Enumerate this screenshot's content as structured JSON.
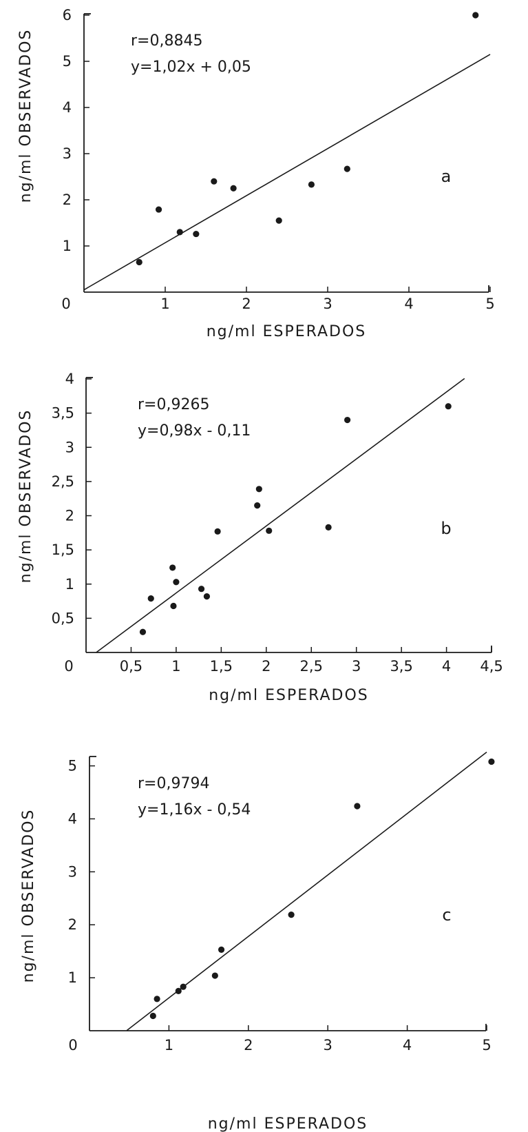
{
  "chart_data": [
    {
      "type": "scatter",
      "panel_label": "a",
      "xlabel": "ng/ml ESPERADOS",
      "ylabel": "ng/ml OBSERVADOS",
      "r_label": "r=0,8845",
      "eq_label": "y=1,02x + 0,05",
      "origin_label": "0",
      "xlim": [
        0,
        5
      ],
      "ylim": [
        0,
        6
      ],
      "xticks": [
        {
          "v": 1,
          "label": "1"
        },
        {
          "v": 2,
          "label": "2"
        },
        {
          "v": 3,
          "label": "3"
        },
        {
          "v": 4,
          "label": "4"
        },
        {
          "v": 5,
          "label": "5"
        }
      ],
      "yticks": [
        {
          "v": 1,
          "label": "1"
        },
        {
          "v": 2,
          "label": "2"
        },
        {
          "v": 3,
          "label": "3"
        },
        {
          "v": 4,
          "label": "4"
        },
        {
          "v": 5,
          "label": "5"
        },
        {
          "v": 6,
          "label": "6"
        }
      ],
      "fit": {
        "slope": 1.02,
        "intercept": 0.05,
        "x0": 0,
        "x1": 5
      },
      "points": [
        {
          "x": 0.68,
          "y": 0.65
        },
        {
          "x": 0.92,
          "y": 1.79
        },
        {
          "x": 1.18,
          "y": 1.3
        },
        {
          "x": 1.38,
          "y": 1.26
        },
        {
          "x": 1.6,
          "y": 2.4
        },
        {
          "x": 1.84,
          "y": 2.25
        },
        {
          "x": 2.4,
          "y": 1.55
        },
        {
          "x": 2.8,
          "y": 2.33
        },
        {
          "x": 3.24,
          "y": 2.67
        },
        {
          "x": 4.82,
          "y": 6.0
        }
      ],
      "grid": false,
      "legend": "none"
    },
    {
      "type": "scatter",
      "panel_label": "b",
      "xlabel": "ng/ml ESPERADOS",
      "ylabel": "ng/ml OBSERVADOS",
      "r_label": "r=0,9265",
      "eq_label": "y=0,98x - 0,11",
      "origin_label": "0",
      "xlim": [
        0,
        4.5
      ],
      "ylim": [
        0,
        4
      ],
      "xticks": [
        {
          "v": 0.5,
          "label": "0,5"
        },
        {
          "v": 1,
          "label": "1"
        },
        {
          "v": 1.5,
          "label": "1,5"
        },
        {
          "v": 2,
          "label": "2"
        },
        {
          "v": 2.5,
          "label": "2,5"
        },
        {
          "v": 3,
          "label": "3"
        },
        {
          "v": 3.5,
          "label": "3,5"
        },
        {
          "v": 4,
          "label": "4"
        },
        {
          "v": 4.5,
          "label": "4,5"
        }
      ],
      "yticks": [
        {
          "v": 0.5,
          "label": "0,5"
        },
        {
          "v": 1,
          "label": "1"
        },
        {
          "v": 1.5,
          "label": "1,5"
        },
        {
          "v": 2,
          "label": "2"
        },
        {
          "v": 2.5,
          "label": "2,5"
        },
        {
          "v": 3,
          "label": "3"
        },
        {
          "v": 3.5,
          "label": "3,5"
        },
        {
          "v": 4,
          "label": "4"
        }
      ],
      "fit": {
        "slope": 0.98,
        "intercept": -0.11,
        "x0": 0.11,
        "x1": 4.2
      },
      "points": [
        {
          "x": 0.63,
          "y": 0.3
        },
        {
          "x": 0.72,
          "y": 0.79
        },
        {
          "x": 0.96,
          "y": 1.24
        },
        {
          "x": 0.97,
          "y": 0.68
        },
        {
          "x": 1.0,
          "y": 1.03
        },
        {
          "x": 1.28,
          "y": 0.93
        },
        {
          "x": 1.34,
          "y": 0.82
        },
        {
          "x": 1.46,
          "y": 1.77
        },
        {
          "x": 1.9,
          "y": 2.15
        },
        {
          "x": 1.92,
          "y": 2.39
        },
        {
          "x": 2.03,
          "y": 1.78
        },
        {
          "x": 2.69,
          "y": 1.83
        },
        {
          "x": 2.9,
          "y": 3.4
        },
        {
          "x": 4.02,
          "y": 3.6
        }
      ],
      "grid": false,
      "legend": "none"
    },
    {
      "type": "scatter",
      "panel_label": "c",
      "xlabel": "ng/ml ESPERADOS",
      "ylabel": "ng/ml OBSERVADOS",
      "r_label": "r=0,9794",
      "eq_label": "y=1,16x - 0,54",
      "origin_label": "0",
      "xlim": [
        0,
        5.2
      ],
      "ylim": [
        0,
        5.2
      ],
      "xticks": [
        {
          "v": 1,
          "label": "1"
        },
        {
          "v": 2,
          "label": "2"
        },
        {
          "v": 3,
          "label": "3"
        },
        {
          "v": 4,
          "label": "4"
        },
        {
          "v": 5,
          "label": "5"
        }
      ],
      "yticks": [
        {
          "v": 1,
          "label": "1"
        },
        {
          "v": 2,
          "label": "2"
        },
        {
          "v": 3,
          "label": "3"
        },
        {
          "v": 4,
          "label": "4"
        },
        {
          "v": 5,
          "label": "5"
        }
      ],
      "fit": {
        "slope": 1.16,
        "intercept": -0.54,
        "x0": 0.47,
        "x1": 5.0
      },
      "points": [
        {
          "x": 0.8,
          "y": 0.28
        },
        {
          "x": 0.85,
          "y": 0.6
        },
        {
          "x": 1.12,
          "y": 0.75
        },
        {
          "x": 1.18,
          "y": 0.83
        },
        {
          "x": 1.58,
          "y": 1.04
        },
        {
          "x": 1.66,
          "y": 1.53
        },
        {
          "x": 2.54,
          "y": 2.19
        },
        {
          "x": 3.37,
          "y": 4.24
        },
        {
          "x": 5.06,
          "y": 5.08
        }
      ],
      "grid": false,
      "legend": "none"
    }
  ]
}
